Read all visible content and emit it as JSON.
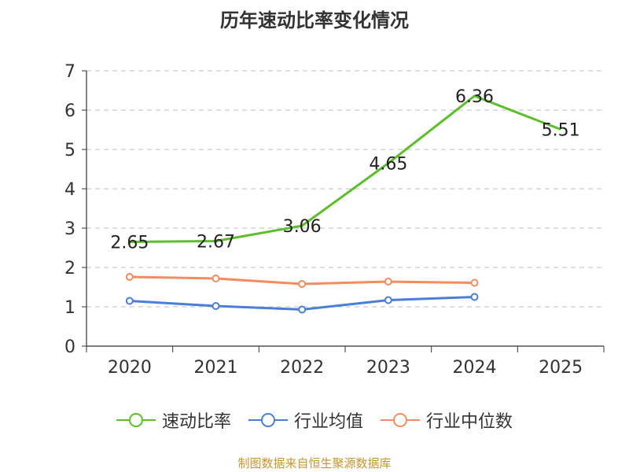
{
  "chart_data": {
    "type": "line",
    "title": "历年速动比率变化情况",
    "categories": [
      "2020",
      "2021",
      "2022",
      "2023",
      "2024",
      "2025"
    ],
    "ylim": [
      0,
      7
    ],
    "yticks": [
      0,
      1,
      2,
      3,
      4,
      5,
      6,
      7
    ],
    "grid": true,
    "legend_position": "bottom",
    "series": [
      {
        "name": "速动比率",
        "color": "#5cbf2a",
        "values": [
          2.65,
          2.67,
          3.06,
          4.65,
          6.36,
          5.51
        ],
        "labels": [
          "2.65",
          "2.67",
          "3.06",
          "4.65",
          "6.36",
          "5.51"
        ],
        "show_markers": false
      },
      {
        "name": "行业均值",
        "color": "#4a7fd8",
        "values": [
          1.15,
          1.02,
          0.93,
          1.17,
          1.25,
          null
        ],
        "show_markers": true
      },
      {
        "name": "行业中位数",
        "color": "#f48c5e",
        "values": [
          1.76,
          1.72,
          1.58,
          1.64,
          1.61,
          null
        ],
        "show_markers": true
      }
    ]
  },
  "footer": "制图数据来自恒生聚源数据库"
}
